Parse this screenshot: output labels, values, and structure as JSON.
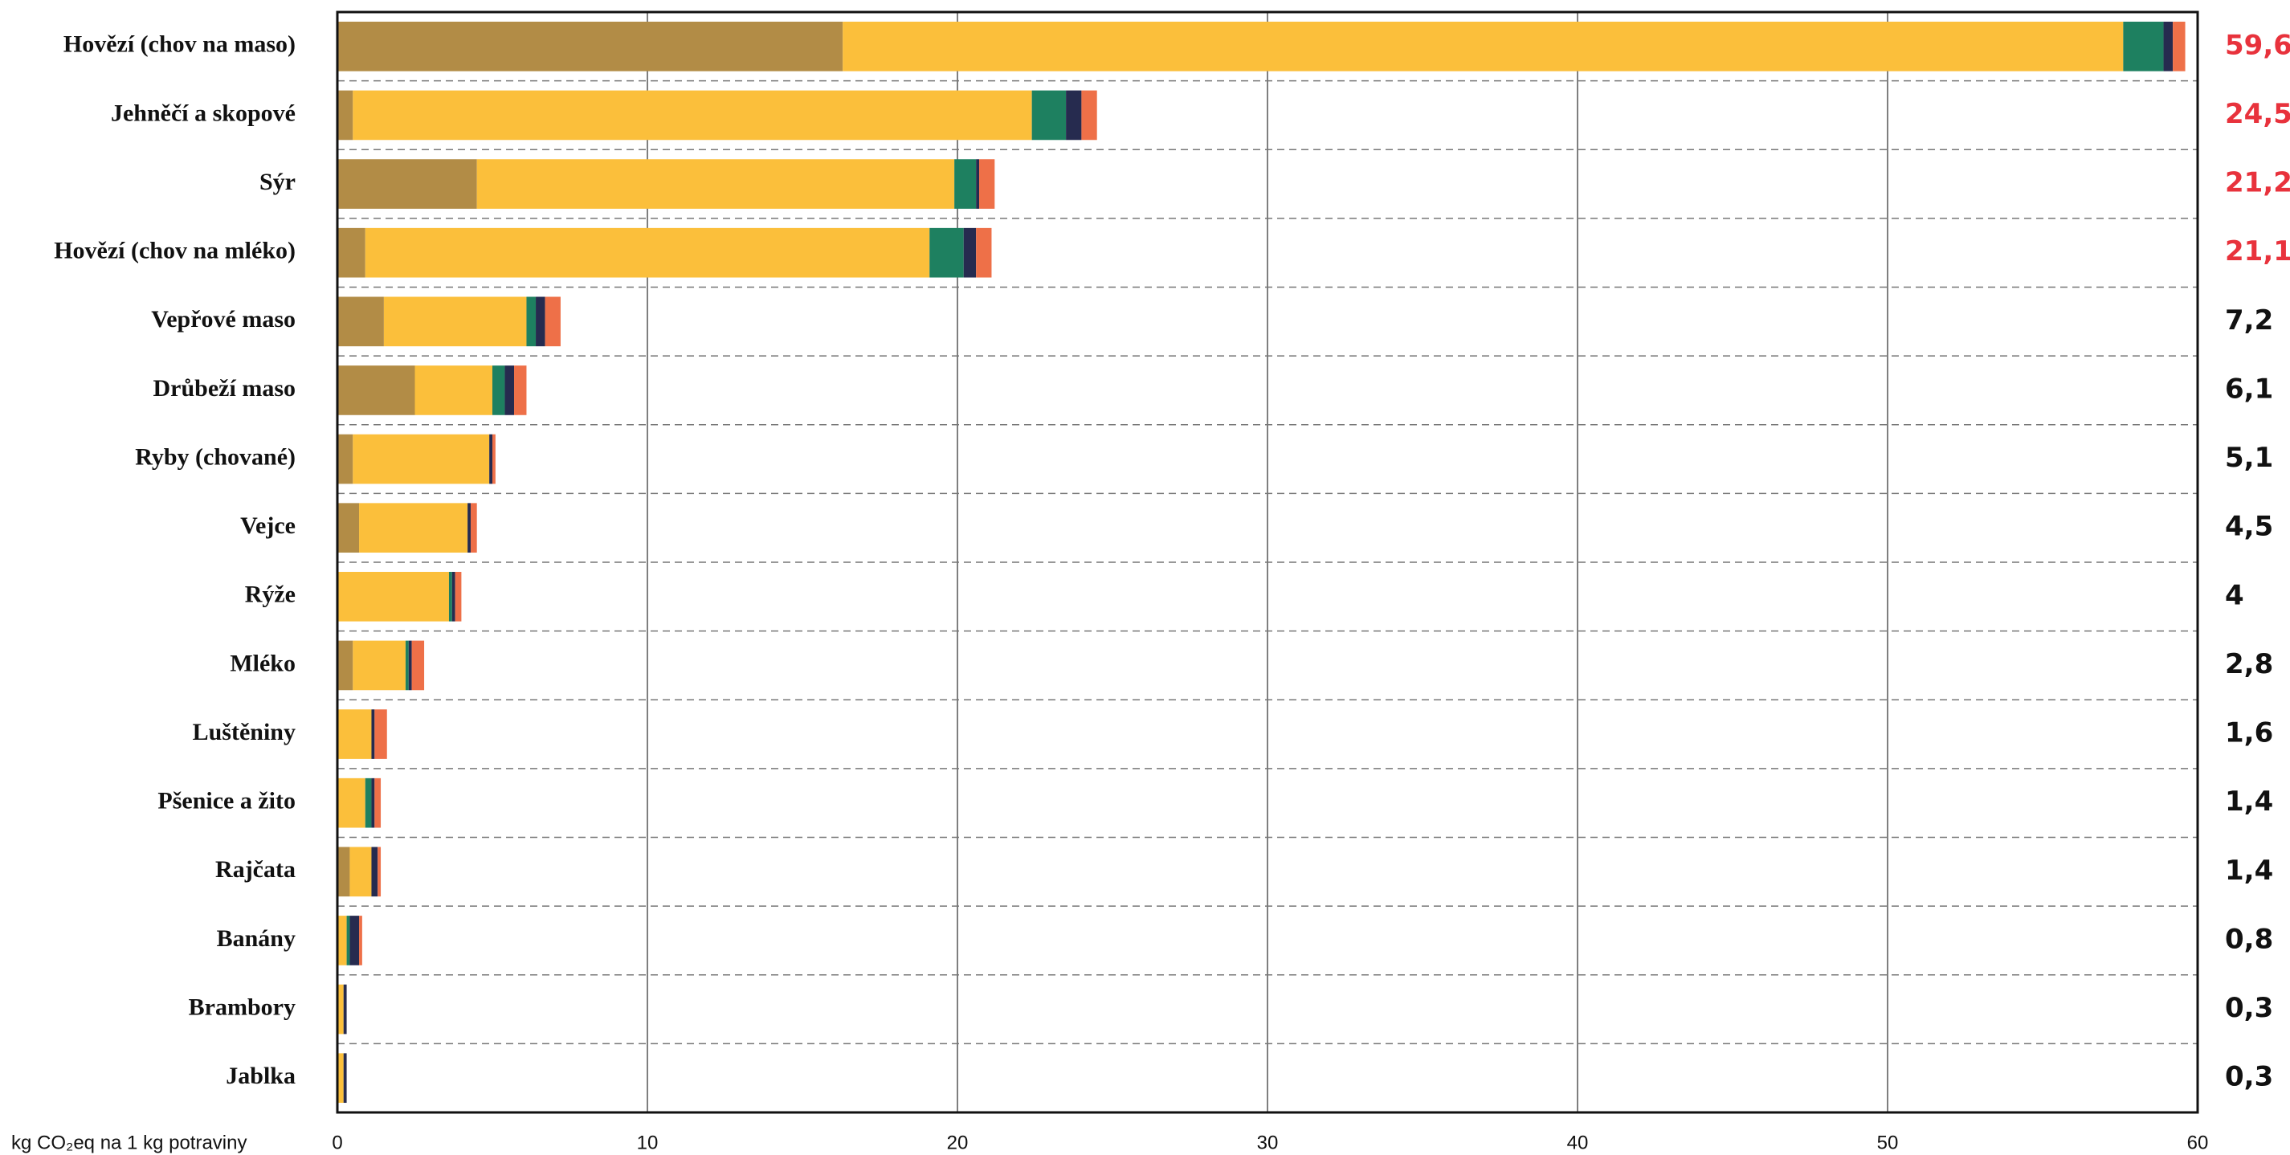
{
  "chart_data": {
    "type": "stacked-bar-horizontal",
    "categories": [
      "Hovězí (chov na maso)",
      "Jehněčí a skopové",
      "Sýr",
      "Hovězí (chov na mléko)",
      "Vepřové maso",
      "Drůbeží maso",
      "Ryby (chované)",
      "Vejce",
      "Rýže",
      "Mléko",
      "Luštěniny",
      "Pšenice a žito",
      "Rajčata",
      "Banány",
      "Brambory",
      "Jablka"
    ],
    "series": [
      {
        "color": "#b28c46",
        "values": [
          16.3,
          0.5,
          4.5,
          0.9,
          1.5,
          2.5,
          0.5,
          0.7,
          0,
          0.5,
          0,
          0,
          0.4,
          0,
          0,
          0
        ]
      },
      {
        "color": "#fbbf3b",
        "values": [
          41.3,
          21.9,
          15.4,
          18.2,
          4.6,
          2.5,
          4.4,
          3.5,
          3.6,
          1.7,
          1.1,
          0.9,
          0.7,
          0.3,
          0.2,
          0.2
        ]
      },
      {
        "color": "#1e8060",
        "values": [
          1.3,
          1.1,
          0.7,
          1.1,
          0.3,
          0.4,
          0,
          0,
          0.1,
          0.1,
          0,
          0.2,
          0,
          0.1,
          0,
          0
        ]
      },
      {
        "color": "#262b4f",
        "values": [
          0.3,
          0.5,
          0.1,
          0.4,
          0.3,
          0.3,
          0.1,
          0.1,
          0.1,
          0.1,
          0.1,
          0.1,
          0.2,
          0.3,
          0.1,
          0.1
        ]
      },
      {
        "color": "#ee7048",
        "values": [
          0.4,
          0.5,
          0.5,
          0.5,
          0.5,
          0.4,
          0.1,
          0.2,
          0.2,
          0.4,
          0.4,
          0.2,
          0.1,
          0.1,
          0,
          0
        ]
      }
    ],
    "totals": [
      59.6,
      24.5,
      21.2,
      21.1,
      7.2,
      6.1,
      5.1,
      4.5,
      4,
      2.8,
      1.6,
      1.4,
      1.4,
      0.8,
      0.3,
      0.3
    ],
    "total_labels": [
      "59,6",
      "24,5",
      "21,2",
      "21,1",
      "7,2",
      "6,1",
      "5,1",
      "4,5",
      "4",
      "2,8",
      "1,6",
      "1,4",
      "1,4",
      "0,8",
      "0,3",
      "0,3"
    ],
    "total_label_colors": [
      "#e8323c",
      "#e8323c",
      "#e8323c",
      "#e8323c",
      "#111111",
      "#111111",
      "#111111",
      "#111111",
      "#111111",
      "#111111",
      "#111111",
      "#111111",
      "#111111",
      "#111111",
      "#111111",
      "#111111"
    ],
    "xlabel": "kg CO₂eq na 1 kg potraviny",
    "xlim": [
      0,
      60
    ],
    "xticks": [
      0,
      10,
      20,
      30,
      40,
      50,
      60
    ],
    "grid": true
  }
}
